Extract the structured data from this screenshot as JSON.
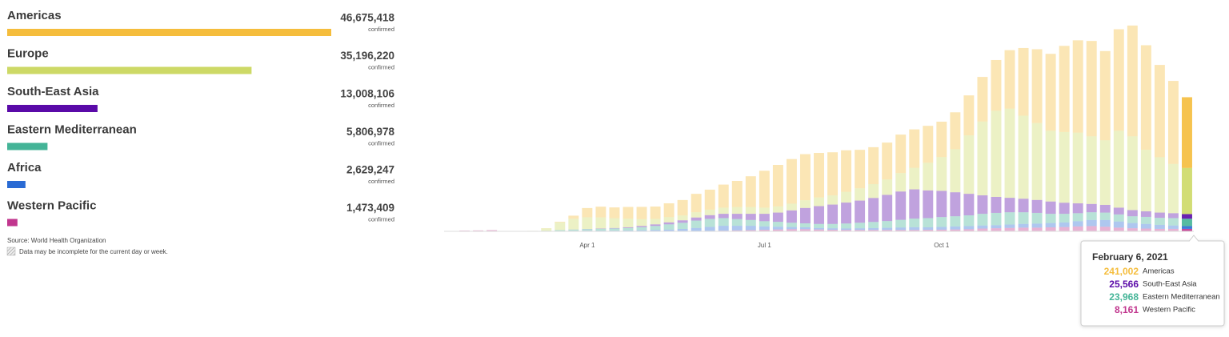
{
  "chart_data": [
    {
      "type": "hbar",
      "categories": [
        "Americas",
        "Europe",
        "South-East Asia",
        "Eastern Mediterranean",
        "Africa",
        "Western Pacific"
      ],
      "values": [
        46675418,
        35196220,
        13008106,
        5806978,
        2629247,
        1473409
      ],
      "value_labels": [
        "46,675,418",
        "35,196,220",
        "13,008,106",
        "5,806,978",
        "2,629,247",
        "1,473,409"
      ],
      "colors": [
        "#f5bd3c",
        "#cdd966",
        "#5a0aa8",
        "#44b497",
        "#2a6bd4",
        "#c1368e"
      ],
      "value_caption": "confirmed",
      "xlim": [
        0,
        46675418
      ],
      "source": "Source: World Health Organization",
      "note": "Data may be incomplete for the current day or week."
    },
    {
      "type": "stacked_bar",
      "categories": [
        null,
        null,
        null,
        null,
        null,
        null,
        null,
        null,
        null,
        null,
        "Apr 1",
        null,
        null,
        null,
        null,
        null,
        null,
        null,
        null,
        null,
        null,
        null,
        null,
        "Jul 1",
        null,
        null,
        null,
        null,
        null,
        null,
        null,
        null,
        null,
        null,
        null,
        null,
        "Oct 1",
        null,
        null,
        null,
        null,
        null,
        null,
        null,
        null,
        null,
        null,
        null,
        null,
        null,
        null,
        null,
        null,
        null,
        null
      ],
      "series": [
        {
          "name": "Americas",
          "color": "#f5bd3c",
          "values": [
            0,
            0,
            0,
            0,
            0,
            0,
            0,
            500,
            2000,
            10000,
            30000,
            35000,
            35000,
            38000,
            40000,
            40000,
            45000,
            50000,
            60000,
            65000,
            75000,
            85000,
            100000,
            120000,
            135000,
            145000,
            150000,
            145000,
            140000,
            135000,
            125000,
            120000,
            120000,
            125000,
            125000,
            120000,
            115000,
            120000,
            130000,
            145000,
            165000,
            190000,
            220000,
            240000,
            250000,
            280000,
            300000,
            310000,
            290000,
            330000,
            360000,
            340000,
            300000,
            270000,
            230000
          ]
        },
        {
          "name": "Europe",
          "color": "#cdd966",
          "values": [
            0,
            0,
            0,
            0,
            0,
            100,
            1000,
            8000,
            25000,
            35000,
            38000,
            36000,
            32000,
            28000,
            22000,
            18000,
            17000,
            16000,
            17000,
            18000,
            20000,
            22000,
            22000,
            20000,
            20000,
            22000,
            25000,
            28000,
            30000,
            35000,
            40000,
            45000,
            50000,
            60000,
            70000,
            90000,
            110000,
            140000,
            190000,
            240000,
            280000,
            290000,
            270000,
            250000,
            230000,
            230000,
            230000,
            220000,
            210000,
            250000,
            240000,
            200000,
            180000,
            160000,
            150000
          ]
        },
        {
          "name": "South-East Asia",
          "color": "#5a0aa8",
          "values": [
            0,
            0,
            0,
            0,
            0,
            0,
            0,
            0,
            0,
            200,
            500,
            1000,
            1500,
            2500,
            4000,
            5000,
            6500,
            8000,
            10000,
            12000,
            14000,
            17000,
            20000,
            24000,
            30000,
            40000,
            50000,
            58000,
            63000,
            68000,
            72000,
            78000,
            85000,
            92000,
            95000,
            90000,
            85000,
            78000,
            70000,
            60000,
            52000,
            47000,
            44000,
            42000,
            40000,
            36000,
            32000,
            27000,
            25000,
            22000,
            20000,
            18000,
            17000,
            16000,
            15000
          ]
        },
        {
          "name": "Eastern Mediterranean",
          "color": "#44b497",
          "values": [
            0,
            0,
            0,
            0,
            0,
            0,
            200,
            1000,
            3000,
            4000,
            5000,
            6000,
            7000,
            8000,
            10000,
            13000,
            17000,
            20000,
            24000,
            26000,
            25000,
            22000,
            19000,
            17000,
            16000,
            14000,
            13000,
            13000,
            14000,
            16000,
            18000,
            20000,
            22000,
            25000,
            28000,
            30000,
            32000,
            33000,
            35000,
            38000,
            40000,
            40000,
            38000,
            35000,
            30000,
            28000,
            26000,
            25000,
            24000,
            23000,
            22000,
            23000,
            23000,
            24000,
            24000
          ]
        },
        {
          "name": "Africa",
          "color": "#2a6bd4",
          "values": [
            0,
            0,
            0,
            0,
            0,
            0,
            0,
            0,
            50,
            300,
            800,
            1000,
            1300,
            2000,
            3000,
            4000,
            5000,
            7000,
            10000,
            13000,
            16000,
            15000,
            14000,
            11000,
            9000,
            7000,
            6000,
            5000,
            5000,
            5000,
            5500,
            6000,
            7000,
            8000,
            9000,
            8000,
            9000,
            10000,
            10000,
            10000,
            10000,
            11000,
            12000,
            13000,
            14000,
            15000,
            17000,
            20000,
            22000,
            20000,
            17000,
            15000,
            13000,
            11000,
            9000
          ]
        },
        {
          "name": "Western Pacific",
          "color": "#c1368e",
          "values": [
            500,
            2500,
            3000,
            4000,
            500,
            200,
            500,
            800,
            1200,
            1500,
            1500,
            1200,
            1000,
            800,
            600,
            600,
            700,
            800,
            1000,
            1500,
            2000,
            3000,
            4000,
            5000,
            6000,
            7000,
            7000,
            6000,
            5000,
            4500,
            4500,
            4500,
            4500,
            4500,
            4500,
            5000,
            5500,
            6000,
            7000,
            9000,
            10000,
            11000,
            12000,
            12000,
            13000,
            14000,
            16000,
            17000,
            15000,
            12000,
            10000,
            9000,
            8000,
            8000,
            8000
          ]
        }
      ],
      "ylim": [
        0,
        700000
      ],
      "tooltip": {
        "title": "February 6, 2021",
        "names": [
          "Americas",
          "South-East Asia",
          "Eastern Mediterranean",
          "Western Pacific"
        ],
        "colors": [
          "#f5bd3c",
          "#5a0aa8",
          "#44b497",
          "#c1368e"
        ],
        "values": [
          241002,
          25566,
          23968,
          8161
        ],
        "value_labels": [
          "241,002",
          "25,566",
          "23,968",
          "8,161"
        ]
      }
    }
  ]
}
